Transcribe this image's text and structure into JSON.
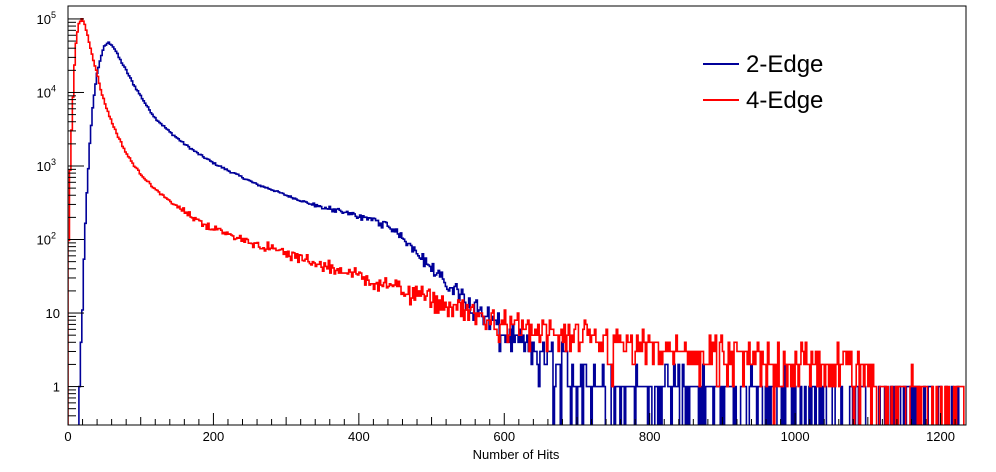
{
  "chart_data": {
    "type": "line",
    "title": "",
    "xlabel": "Number of Hits",
    "ylabel": "",
    "xlim": [
      0,
      1235
    ],
    "ylim": [
      0.3,
      150000
    ],
    "yscale": "log",
    "grid": false,
    "legend_position": "top-right",
    "x_ticks": [
      0,
      200,
      400,
      600,
      800,
      1000,
      1200
    ],
    "y_ticks": [
      {
        "value": 1,
        "mantissa": "1",
        "exponent": ""
      },
      {
        "value": 10,
        "mantissa": "10",
        "exponent": ""
      },
      {
        "value": 100,
        "mantissa": "10",
        "exponent": "2"
      },
      {
        "value": 1000,
        "mantissa": "10",
        "exponent": "3"
      },
      {
        "value": 10000,
        "mantissa": "10",
        "exponent": "4"
      },
      {
        "value": 100000,
        "mantissa": "10",
        "exponent": "5"
      }
    ],
    "series": [
      {
        "name": "2-Edge",
        "color": "#000099",
        "x": [
          15,
          18,
          20,
          22,
          25,
          30,
          35,
          40,
          45,
          50,
          55,
          60,
          65,
          70,
          80,
          90,
          100,
          110,
          120,
          140,
          160,
          180,
          200,
          220,
          240,
          260,
          280,
          300,
          320,
          340,
          360,
          380,
          400,
          420,
          440,
          460,
          480,
          500,
          520,
          540,
          560,
          580,
          600,
          620,
          650,
          680,
          700,
          750,
          800,
          850,
          900,
          950,
          1000,
          1050,
          1100,
          1150,
          1200,
          1230
        ],
        "y": [
          0.3,
          2,
          10,
          50,
          300,
          2000,
          8000,
          18000,
          30000,
          42000,
          48000,
          45000,
          38000,
          30000,
          20000,
          13000,
          9000,
          6200,
          4500,
          2900,
          2000,
          1450,
          1100,
          870,
          700,
          560,
          480,
          400,
          340,
          290,
          260,
          230,
          210,
          185,
          150,
          110,
          70,
          40,
          25,
          18,
          12,
          8,
          5,
          3.5,
          2.5,
          1.8,
          1.4,
          1.0,
          0.8,
          0.7,
          0.6,
          0.55,
          0.5,
          0.45,
          0.4,
          0.4,
          0.35,
          0.35
        ]
      },
      {
        "name": "4-Edge",
        "color": "#ff0000",
        "x": [
          0,
          2,
          5,
          8,
          10,
          12,
          15,
          18,
          20,
          23,
          26,
          30,
          35,
          40,
          45,
          50,
          60,
          70,
          80,
          90,
          100,
          120,
          140,
          160,
          180,
          200,
          240,
          280,
          320,
          360,
          400,
          440,
          480,
          520,
          560,
          600,
          650,
          700,
          750,
          800,
          850,
          900,
          950,
          1000,
          1050,
          1080,
          1100,
          1130,
          1150,
          1200,
          1230
        ],
        "y": [
          20,
          500,
          3000,
          15000,
          35000,
          60000,
          85000,
          100000,
          98000,
          85000,
          65000,
          45000,
          28000,
          18000,
          11000,
          7500,
          4000,
          2400,
          1500,
          1050,
          780,
          480,
          330,
          240,
          180,
          140,
          100,
          75,
          55,
          42,
          32,
          24,
          18,
          13,
          9.5,
          7,
          5.5,
          4.5,
          3.7,
          3.2,
          2.8,
          2.5,
          2.3,
          2.1,
          2.0,
          1.9,
          1.2,
          0.8,
          0.6,
          0.5,
          0.5
        ]
      }
    ]
  }
}
